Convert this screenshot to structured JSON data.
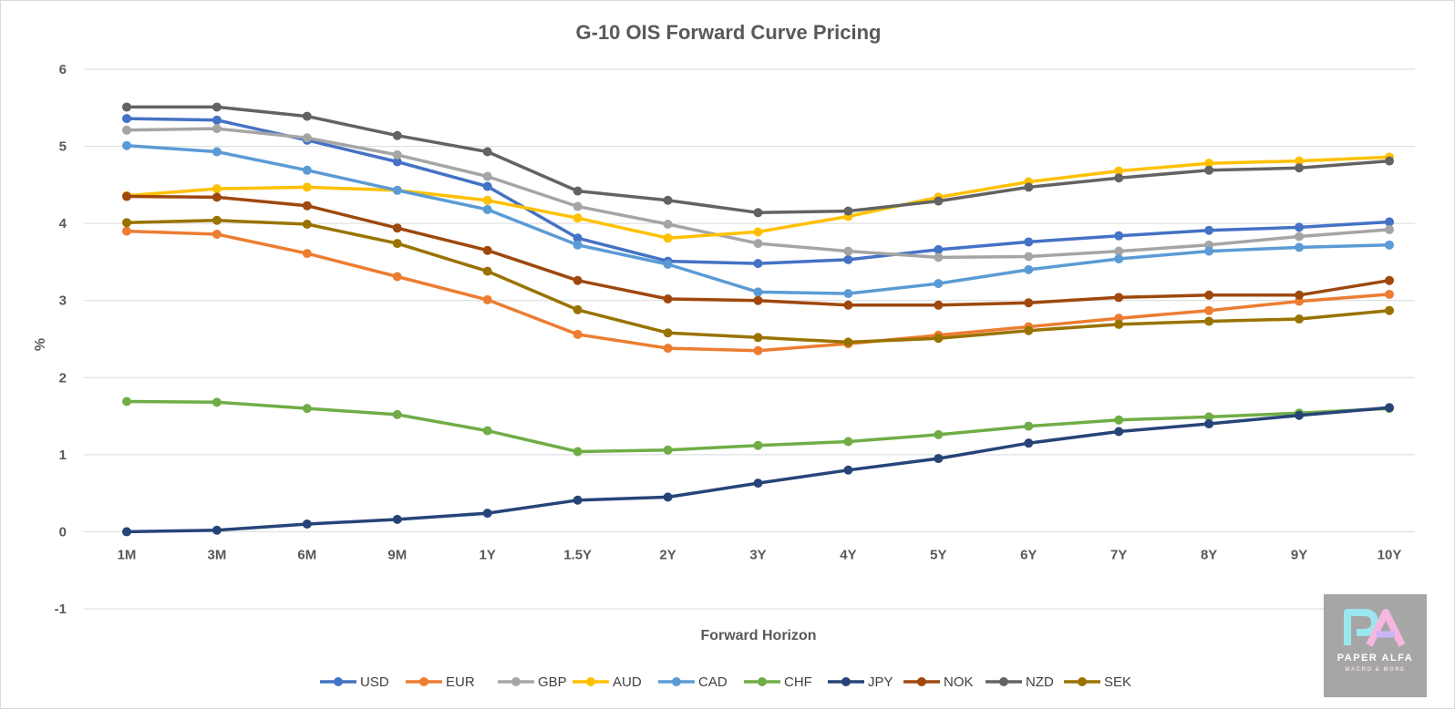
{
  "chart_data": {
    "type": "line",
    "title": "G-10 OIS Forward Curve Pricing",
    "xlabel": "Forward Horizon",
    "ylabel": "%",
    "ylim": [
      -1,
      6
    ],
    "yticks": [
      "-1",
      "0",
      "1",
      "2",
      "3",
      "4",
      "5",
      "6"
    ],
    "grid": true,
    "legend": "bottom",
    "categories": [
      "1M",
      "3M",
      "6M",
      "9M",
      "1Y",
      "1.5Y",
      "2Y",
      "3Y",
      "4Y",
      "5Y",
      "6Y",
      "7Y",
      "8Y",
      "9Y",
      "10Y"
    ],
    "series": [
      {
        "name": "USD",
        "color": "#4472c4",
        "values": [
          5.36,
          5.34,
          5.08,
          4.8,
          4.48,
          3.81,
          3.51,
          3.48,
          3.53,
          3.66,
          3.76,
          3.84,
          3.91,
          3.95,
          4.02
        ]
      },
      {
        "name": "EUR",
        "color": "#ed7d31",
        "values": [
          3.9,
          3.86,
          3.61,
          3.31,
          3.01,
          2.56,
          2.38,
          2.35,
          2.44,
          2.55,
          2.66,
          2.77,
          2.87,
          2.99,
          3.08
        ]
      },
      {
        "name": "GBP",
        "color": "#a5a5a5",
        "values": [
          5.21,
          5.23,
          5.11,
          4.89,
          4.61,
          4.22,
          3.99,
          3.74,
          3.64,
          3.56,
          3.57,
          3.64,
          3.72,
          3.83,
          3.92
        ]
      },
      {
        "name": "AUD",
        "color": "#ffc000",
        "values": [
          4.36,
          4.45,
          4.47,
          4.43,
          4.3,
          4.07,
          3.81,
          3.89,
          4.09,
          4.34,
          4.54,
          4.68,
          4.78,
          4.81,
          4.86
        ]
      },
      {
        "name": "CAD",
        "color": "#5b9bd5",
        "values": [
          5.01,
          4.93,
          4.69,
          4.43,
          4.18,
          3.72,
          3.47,
          3.11,
          3.09,
          3.22,
          3.4,
          3.54,
          3.64,
          3.69,
          3.72
        ]
      },
      {
        "name": "CHF",
        "color": "#70ad47",
        "values": [
          1.69,
          1.68,
          1.6,
          1.52,
          1.31,
          1.04,
          1.06,
          1.12,
          1.17,
          1.26,
          1.37,
          1.45,
          1.49,
          1.54,
          1.6
        ]
      },
      {
        "name": "JPY",
        "color": "#264478",
        "values": [
          0.0,
          0.02,
          0.1,
          0.16,
          0.24,
          0.41,
          0.45,
          0.63,
          0.8,
          0.95,
          1.15,
          1.3,
          1.4,
          1.51,
          1.61
        ]
      },
      {
        "name": "NOK",
        "color": "#9e480e",
        "values": [
          4.35,
          4.34,
          4.23,
          3.94,
          3.65,
          3.26,
          3.02,
          3.0,
          2.94,
          2.94,
          2.97,
          3.04,
          3.07,
          3.07,
          3.26
        ]
      },
      {
        "name": "NZD",
        "color": "#636363",
        "values": [
          5.51,
          5.51,
          5.39,
          5.14,
          4.93,
          4.42,
          4.3,
          4.14,
          4.16,
          4.29,
          4.47,
          4.59,
          4.69,
          4.72,
          4.81
        ]
      },
      {
        "name": "SEK",
        "color": "#997300",
        "values": [
          4.01,
          4.04,
          3.99,
          3.74,
          3.38,
          2.88,
          2.58,
          2.52,
          2.46,
          2.51,
          2.61,
          2.69,
          2.73,
          2.76,
          2.87
        ]
      }
    ]
  },
  "logo": {
    "brand": "PAPER ALFA",
    "tagline": "MACRO & MORE"
  }
}
